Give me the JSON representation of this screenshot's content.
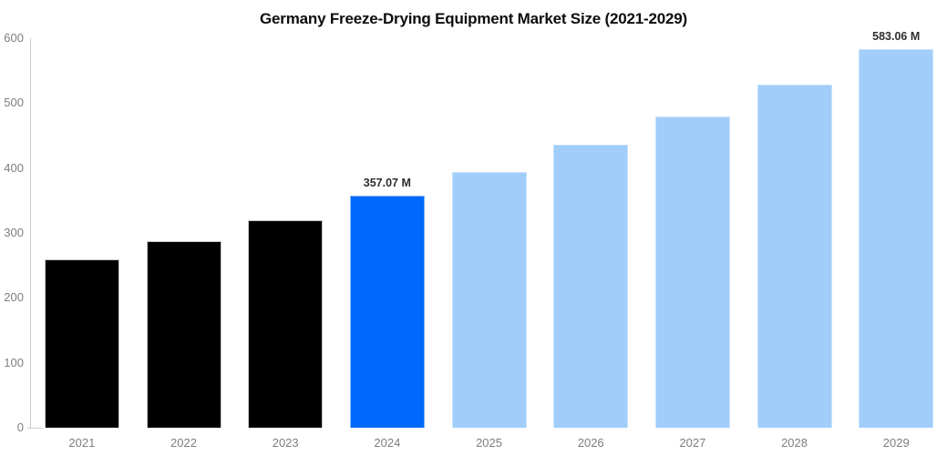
{
  "title": "Germany Freeze-Drying Equipment Market Size (2021-2029)",
  "colors": {
    "background": "#ffffff",
    "title_text": "#0d0d0d",
    "axis_line": "#cccccc",
    "tick_text": "#7e7e7e",
    "data_label_text": "#2d2d2d",
    "historical": "#000000",
    "historical_border": "#c9c9c9",
    "current": "#0069fb",
    "current_border": "#86b5f3",
    "forecast": "#a1cdfa",
    "forecast_border": "#c9e1fc"
  },
  "chart_data": {
    "type": "bar",
    "title": "Germany Freeze-Drying Equipment Market Size (2021-2029)",
    "xlabel": "",
    "ylabel": "",
    "unit": "M",
    "categories": [
      "2021",
      "2022",
      "2023",
      "2024",
      "2025",
      "2026",
      "2027",
      "2028",
      "2029"
    ],
    "values": [
      260,
      288,
      320,
      357.07,
      394,
      436,
      480,
      529,
      583.06
    ],
    "bar_types": [
      "historical",
      "historical",
      "historical",
      "current",
      "forecast",
      "forecast",
      "forecast",
      "forecast",
      "forecast"
    ],
    "data_labels": [
      "",
      "",
      "",
      "357.07 M",
      "",
      "",
      "",
      "",
      "583.06 M"
    ],
    "ylim": [
      0,
      600
    ],
    "yticks": [
      "0",
      "100",
      "200",
      "300",
      "400",
      "500",
      "600"
    ],
    "grid": false,
    "legend": false
  }
}
